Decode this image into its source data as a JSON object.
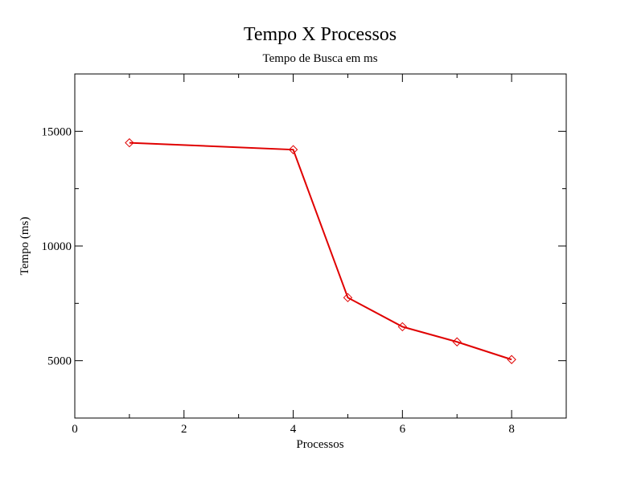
{
  "chart_data": {
    "type": "line",
    "title": "Tempo X Processos",
    "subtitle": "Tempo de Busca em ms",
    "xlabel": "Processos",
    "ylabel": "Tempo (ms)",
    "xlim": [
      0,
      9
    ],
    "ylim": [
      2500,
      17500
    ],
    "xticks": [
      0,
      2,
      4,
      6,
      8
    ],
    "yticks": [
      5000,
      10000,
      15000
    ],
    "grid": false,
    "legend": "none",
    "series": [
      {
        "color": "#e00000",
        "marker": "diamond",
        "points": [
          {
            "x": 1,
            "y": 14500
          },
          {
            "x": 4,
            "y": 14200
          },
          {
            "x": 5,
            "y": 7750
          },
          {
            "x": 6,
            "y": 6480
          },
          {
            "x": 7,
            "y": 5820
          },
          {
            "x": 8,
            "y": 5050
          }
        ]
      }
    ]
  }
}
